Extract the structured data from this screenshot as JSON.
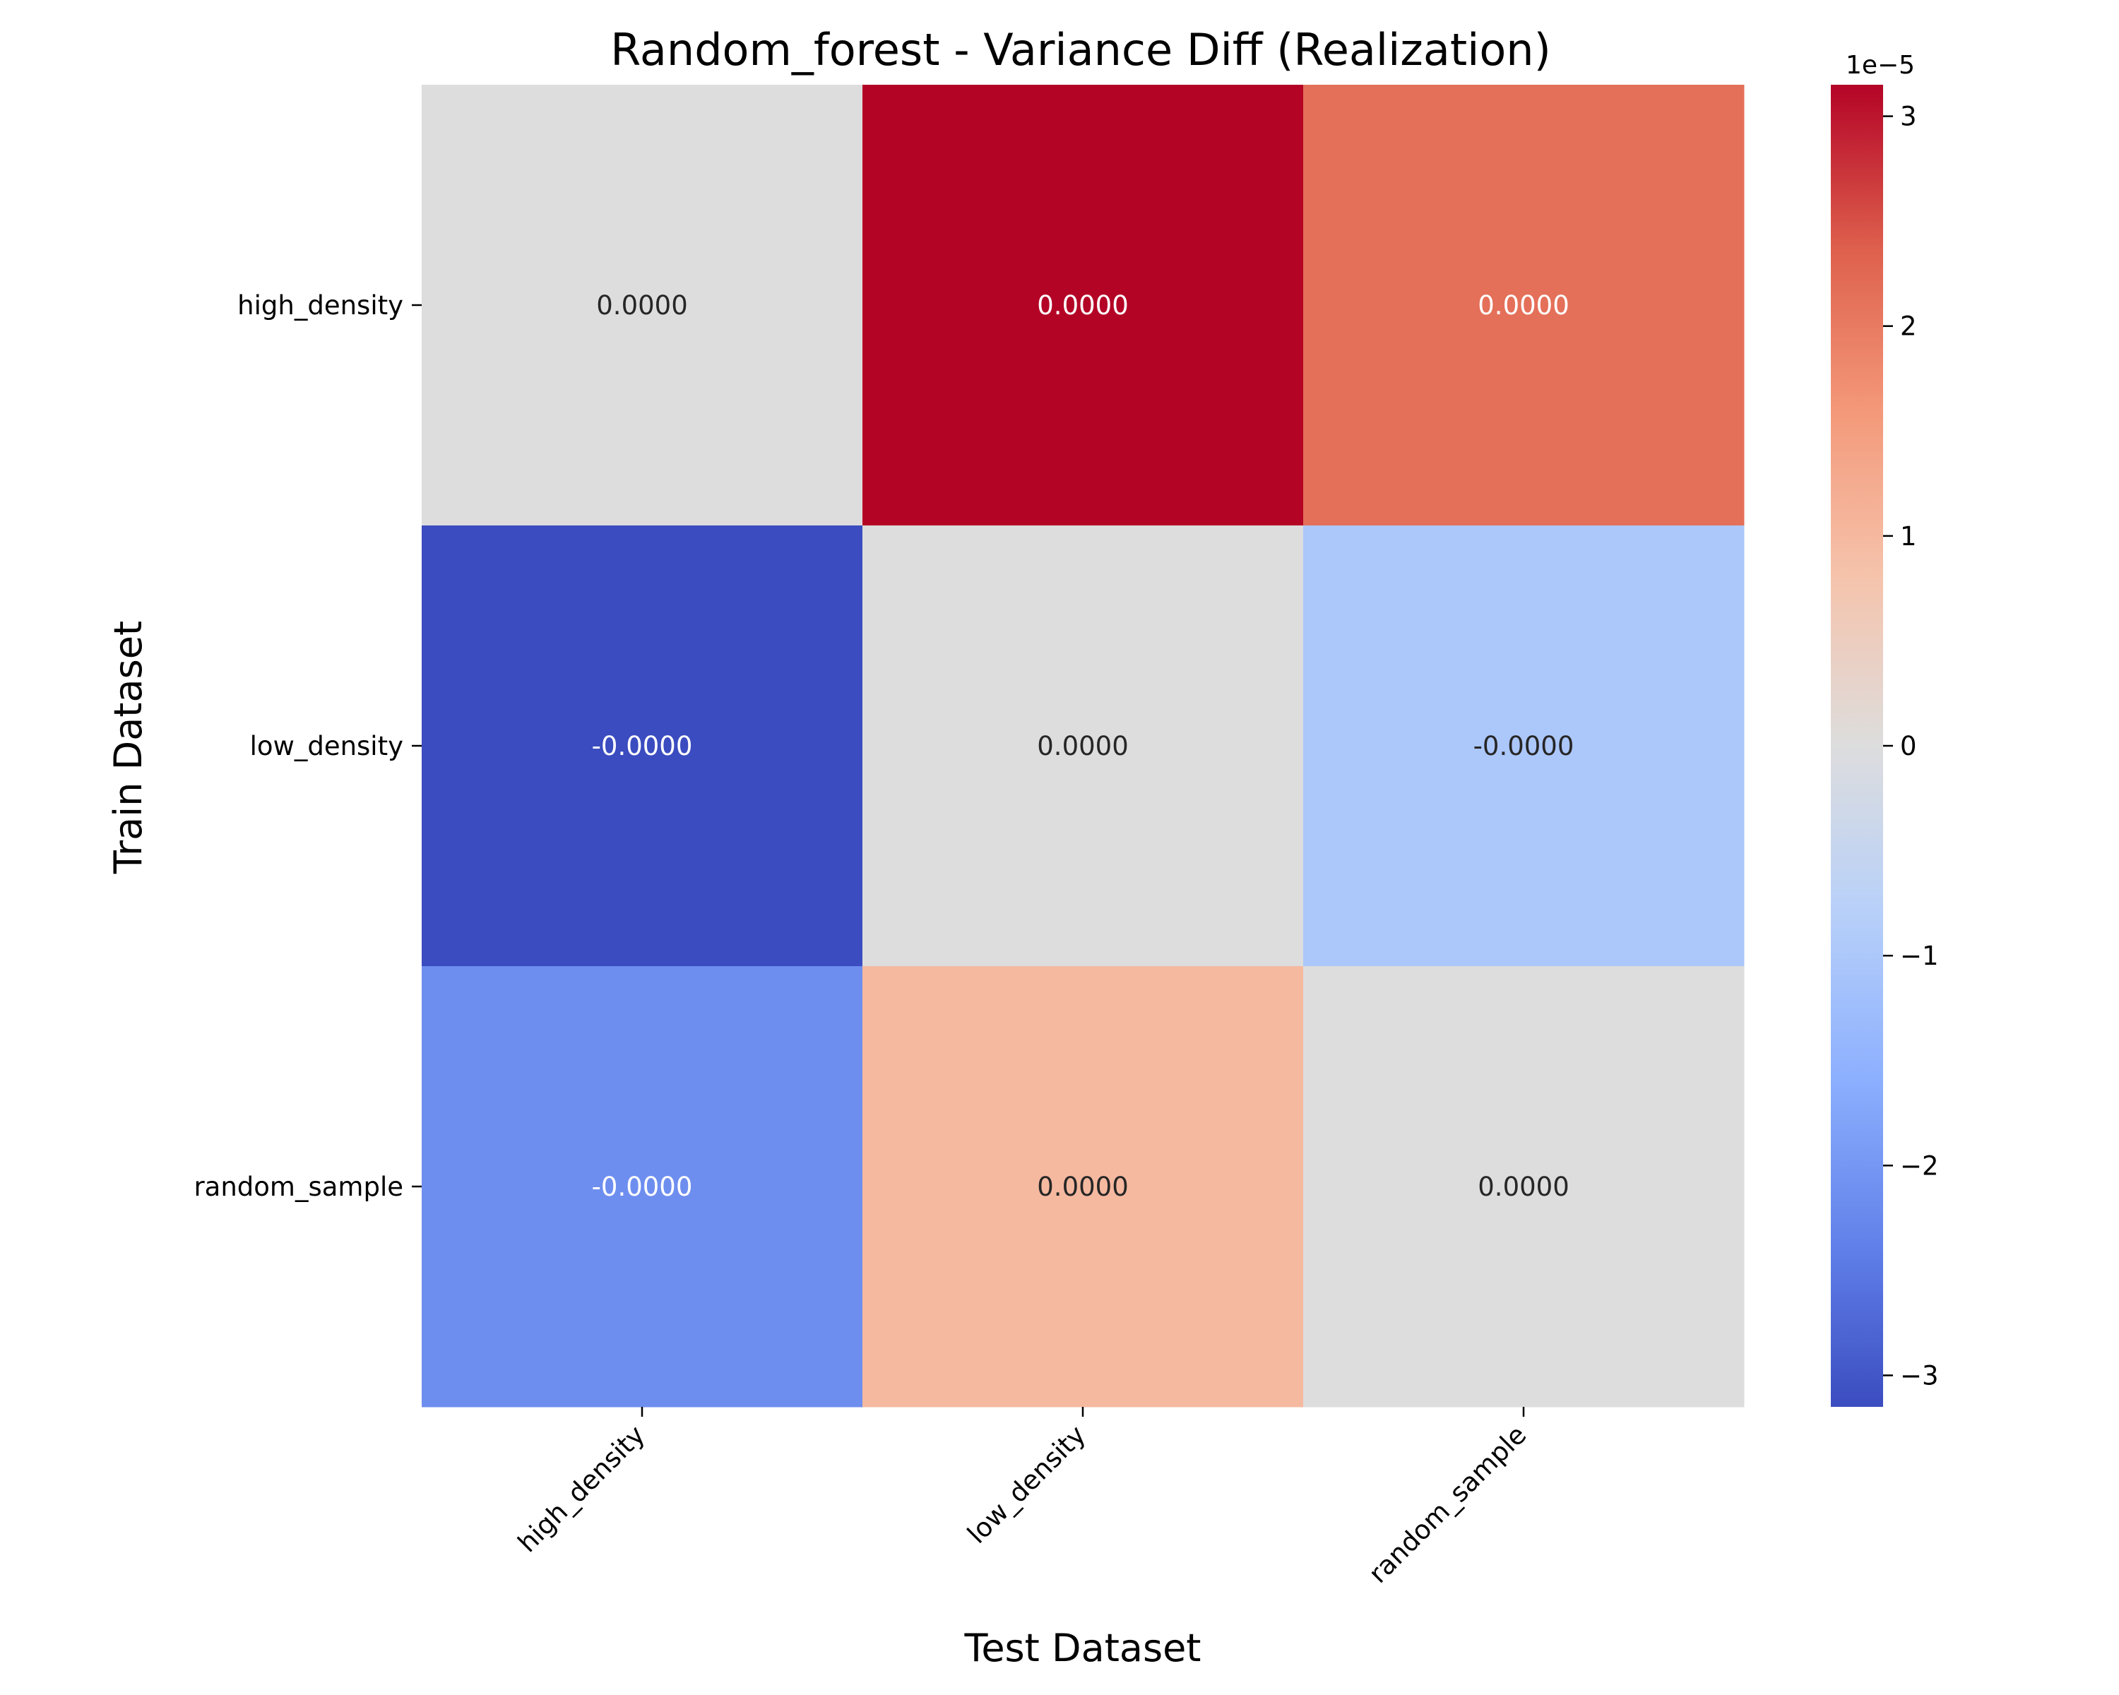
{
  "chart_data": {
    "type": "heatmap",
    "title": "Random_forest - Variance Diff (Realization)",
    "xlabel": "Test Dataset",
    "ylabel": "Train Dataset",
    "x_categories": [
      "high_density",
      "low_density",
      "random_sample"
    ],
    "y_categories": [
      "high_density",
      "low_density",
      "random_sample"
    ],
    "values": [
      [
        0.0,
        3.15e-05,
        2.15e-05
      ],
      [
        -3.15e-05,
        0.0,
        -1e-05
      ],
      [
        -2.15e-05,
        1e-05,
        0.0
      ]
    ],
    "annotations": [
      [
        "0.0000",
        "0.0000",
        "0.0000"
      ],
      [
        "-0.0000",
        "0.0000",
        "-0.0000"
      ],
      [
        "-0.0000",
        "0.0000",
        "0.0000"
      ]
    ],
    "colormap": "coolwarm",
    "vmin": -3.15e-05,
    "vmax": 3.15e-05,
    "colorbar": {
      "multiplier_label": "1e−5",
      "ticks": [
        3,
        2,
        1,
        0,
        -1,
        -2,
        -3
      ],
      "tick_labels": [
        "3",
        "2",
        "1",
        "0",
        "−1",
        "−2",
        "−3"
      ]
    },
    "x_tick_rotation": "45"
  }
}
